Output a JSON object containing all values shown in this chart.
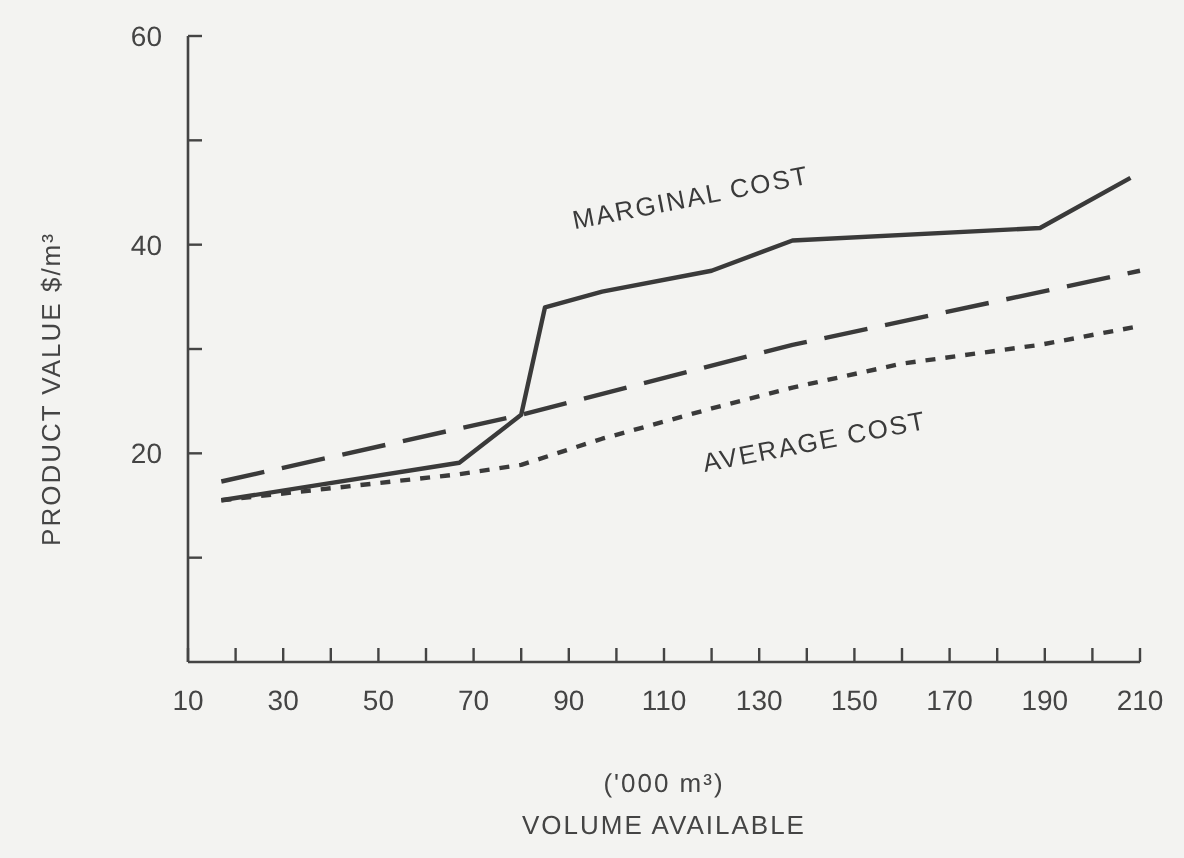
{
  "chart_data": {
    "type": "line",
    "xlabel": "('000 m³)\nVOLUME AVAILABLE",
    "ylabel": "PRODUCT VALUE $/m³",
    "xlim": [
      10,
      210
    ],
    "ylim": [
      0,
      60
    ],
    "xticks": [
      10,
      {
        "value": 20,
        "label": null
      },
      30,
      {
        "value": 40,
        "label": null
      },
      50,
      {
        "value": 60,
        "label": null
      },
      70,
      {
        "value": 80,
        "label": null
      },
      90,
      {
        "value": 100,
        "label": null
      },
      110,
      {
        "value": 120,
        "label": null
      },
      130,
      {
        "value": 140,
        "label": null
      },
      150,
      {
        "value": 160,
        "label": null
      },
      170,
      {
        "value": 180,
        "label": null
      },
      190,
      {
        "value": 200,
        "label": null
      },
      210
    ],
    "yticks": [
      {
        "value": 10,
        "label": null
      },
      20,
      {
        "value": 30,
        "label": null
      },
      40,
      {
        "value": 50,
        "label": null
      },
      60
    ],
    "grid": false,
    "marker": "none",
    "series": [
      {
        "name": "MARGINAL COST",
        "color": "#3a3a3a",
        "line_style": "solid",
        "x": [
          17,
          67,
          80,
          85,
          97,
          120,
          137,
          189,
          208
        ],
        "values": [
          15.5,
          19.1,
          23.7,
          34,
          35.5,
          37.5,
          40.4,
          41.6,
          46.4
        ]
      },
      {
        "color": "#3a3a3a",
        "line_style": "dashed",
        "x": [
          17,
          80,
          137,
          210
        ],
        "values": [
          17.3,
          23.7,
          30.4,
          37.5
        ]
      },
      {
        "name": "AVERAGE COST",
        "color": "#3a3a3a",
        "line_style": "dotted",
        "x": [
          17,
          67,
          80,
          97,
          120,
          137,
          160,
          189,
          210
        ],
        "values": [
          15.5,
          18,
          18.9,
          21.4,
          24.3,
          26.3,
          28.6,
          30.4,
          32.2
        ]
      }
    ]
  }
}
